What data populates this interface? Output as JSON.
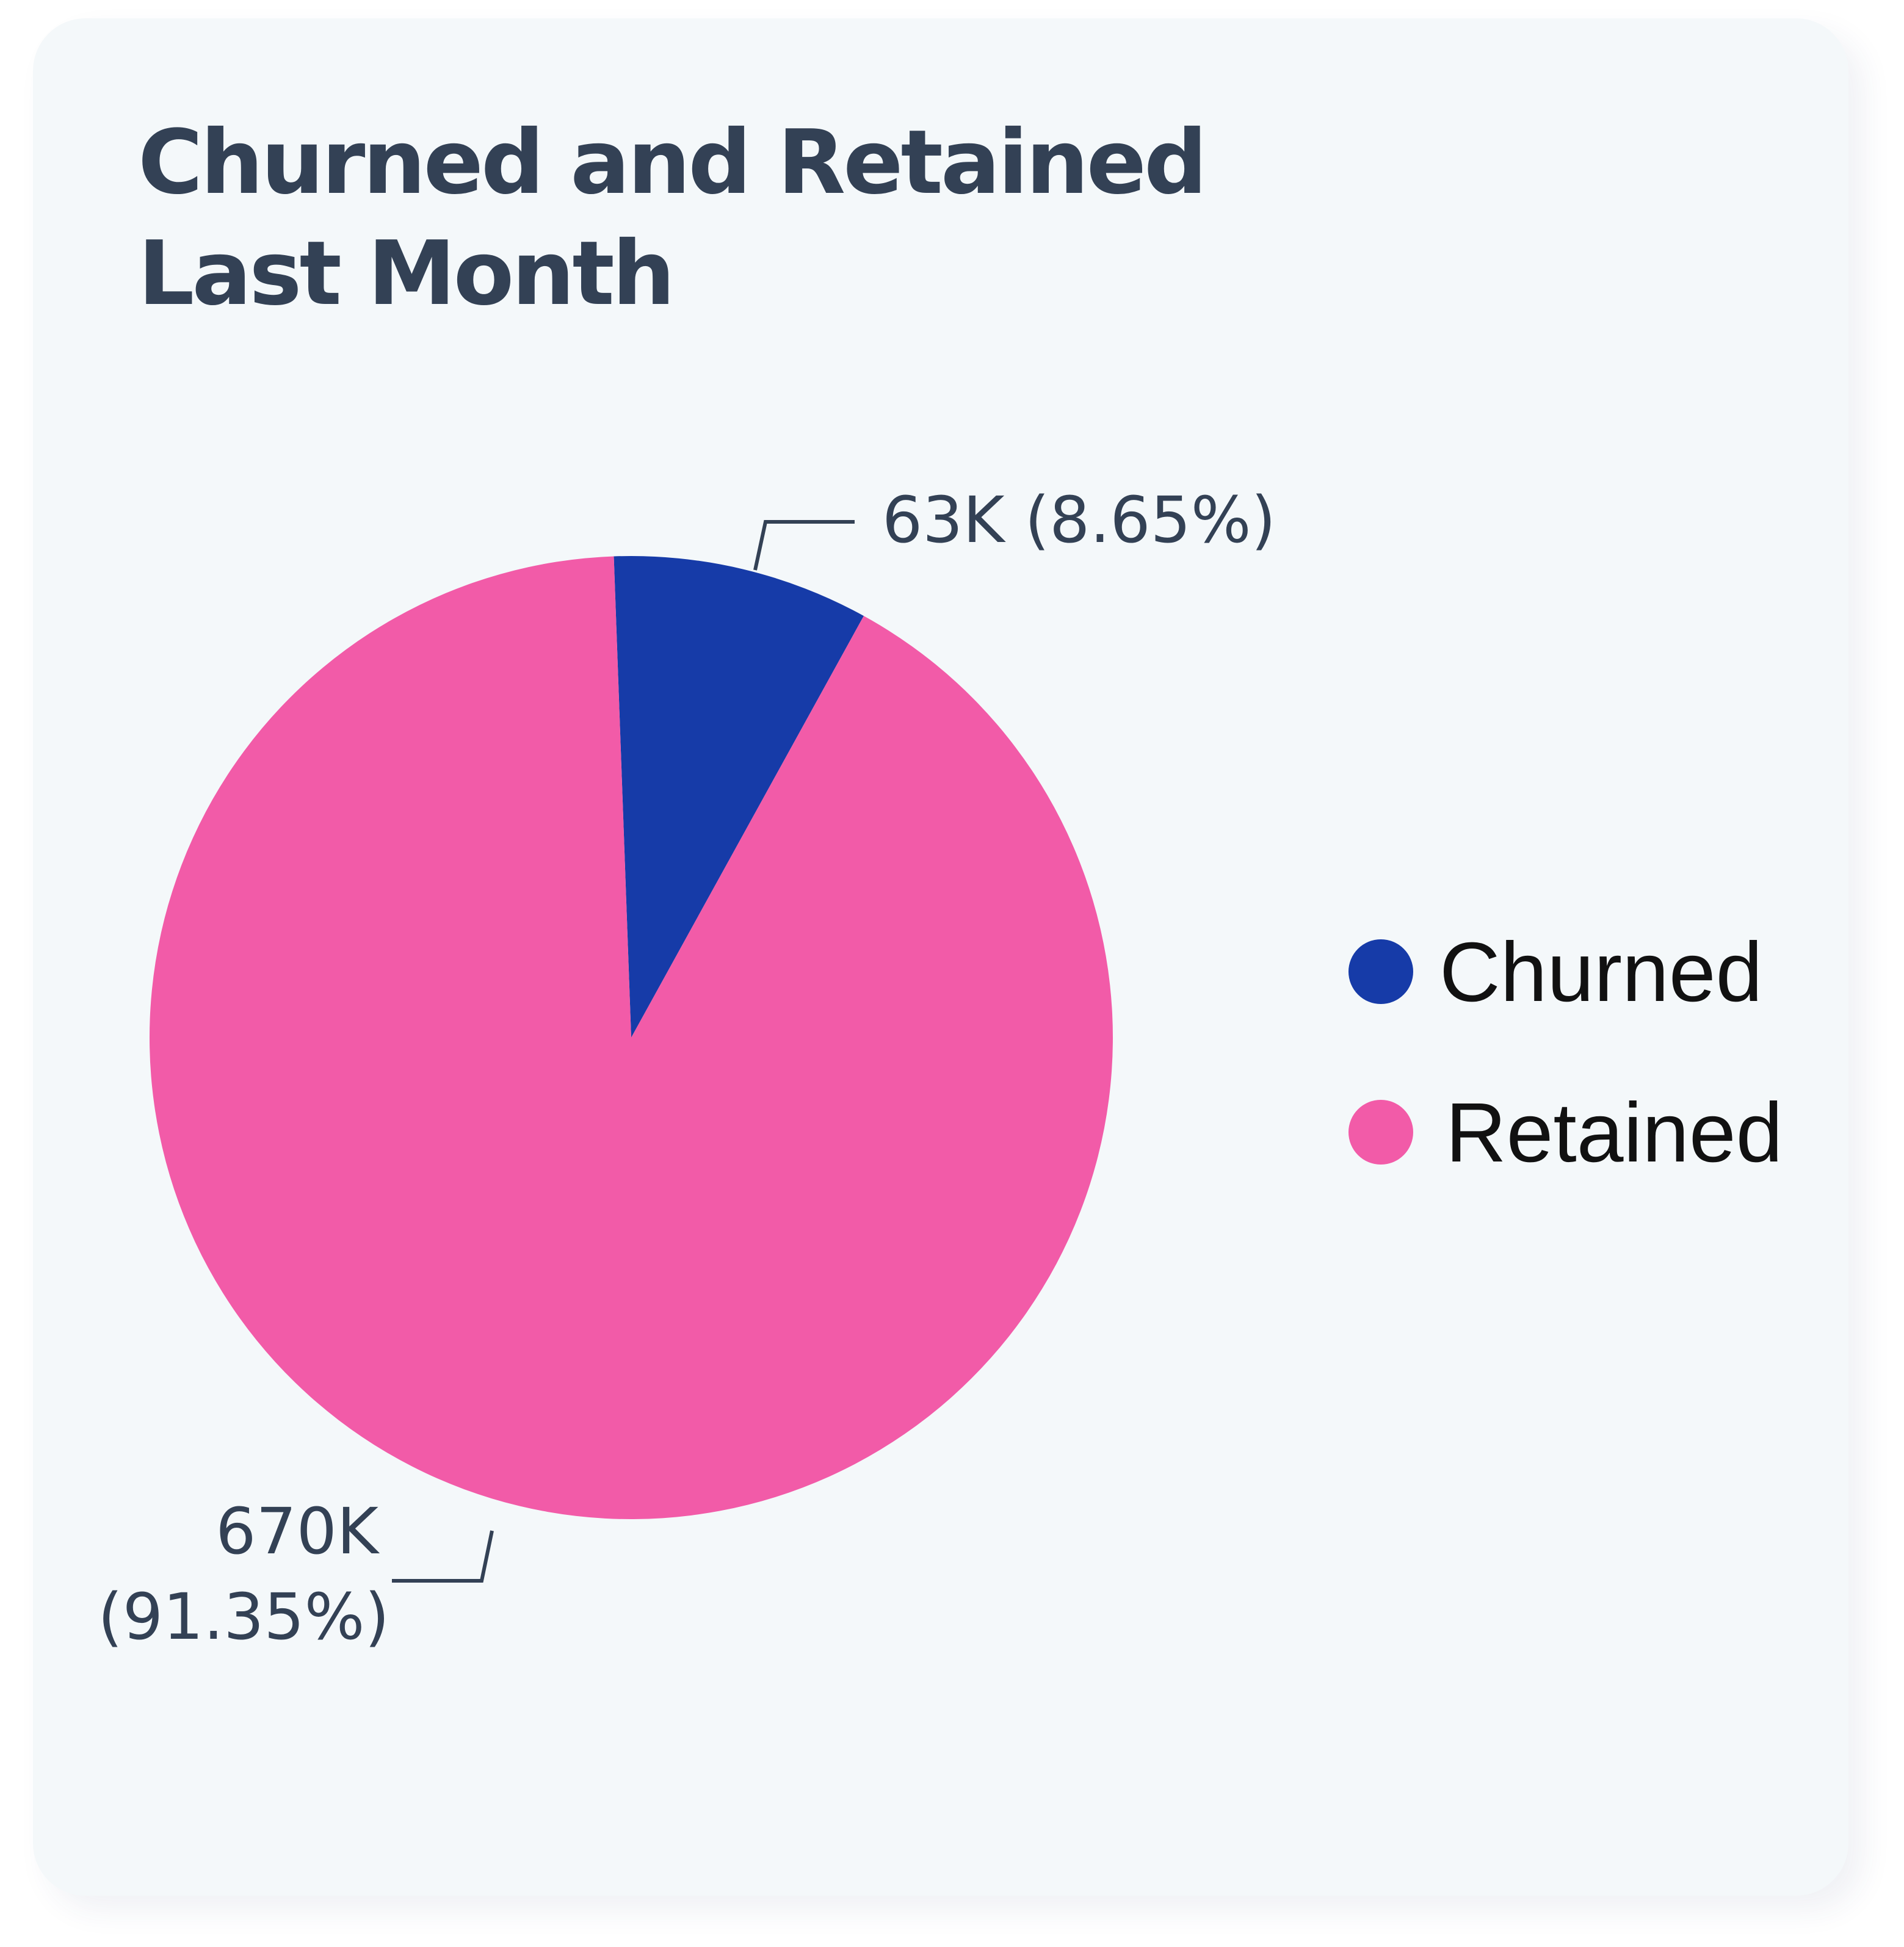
{
  "card": {
    "title_line1": "Churned and Retained",
    "title_line2": "Last Month"
  },
  "chart_data": {
    "type": "pie",
    "title": "Churned and Retained Last Month",
    "slices": [
      {
        "name": "Churned",
        "value": 63000,
        "percent": 8.65,
        "label_line1": "63K (8.65%)",
        "label_line2": "",
        "color": "#163ba8"
      },
      {
        "name": "Retained",
        "value": 670000,
        "percent": 91.35,
        "label_line1": "670K",
        "label_line2": "(91.35%)",
        "color": "#f25ba8"
      }
    ],
    "legend": {
      "position": "right",
      "items": [
        "Churned",
        "Retained"
      ]
    }
  }
}
